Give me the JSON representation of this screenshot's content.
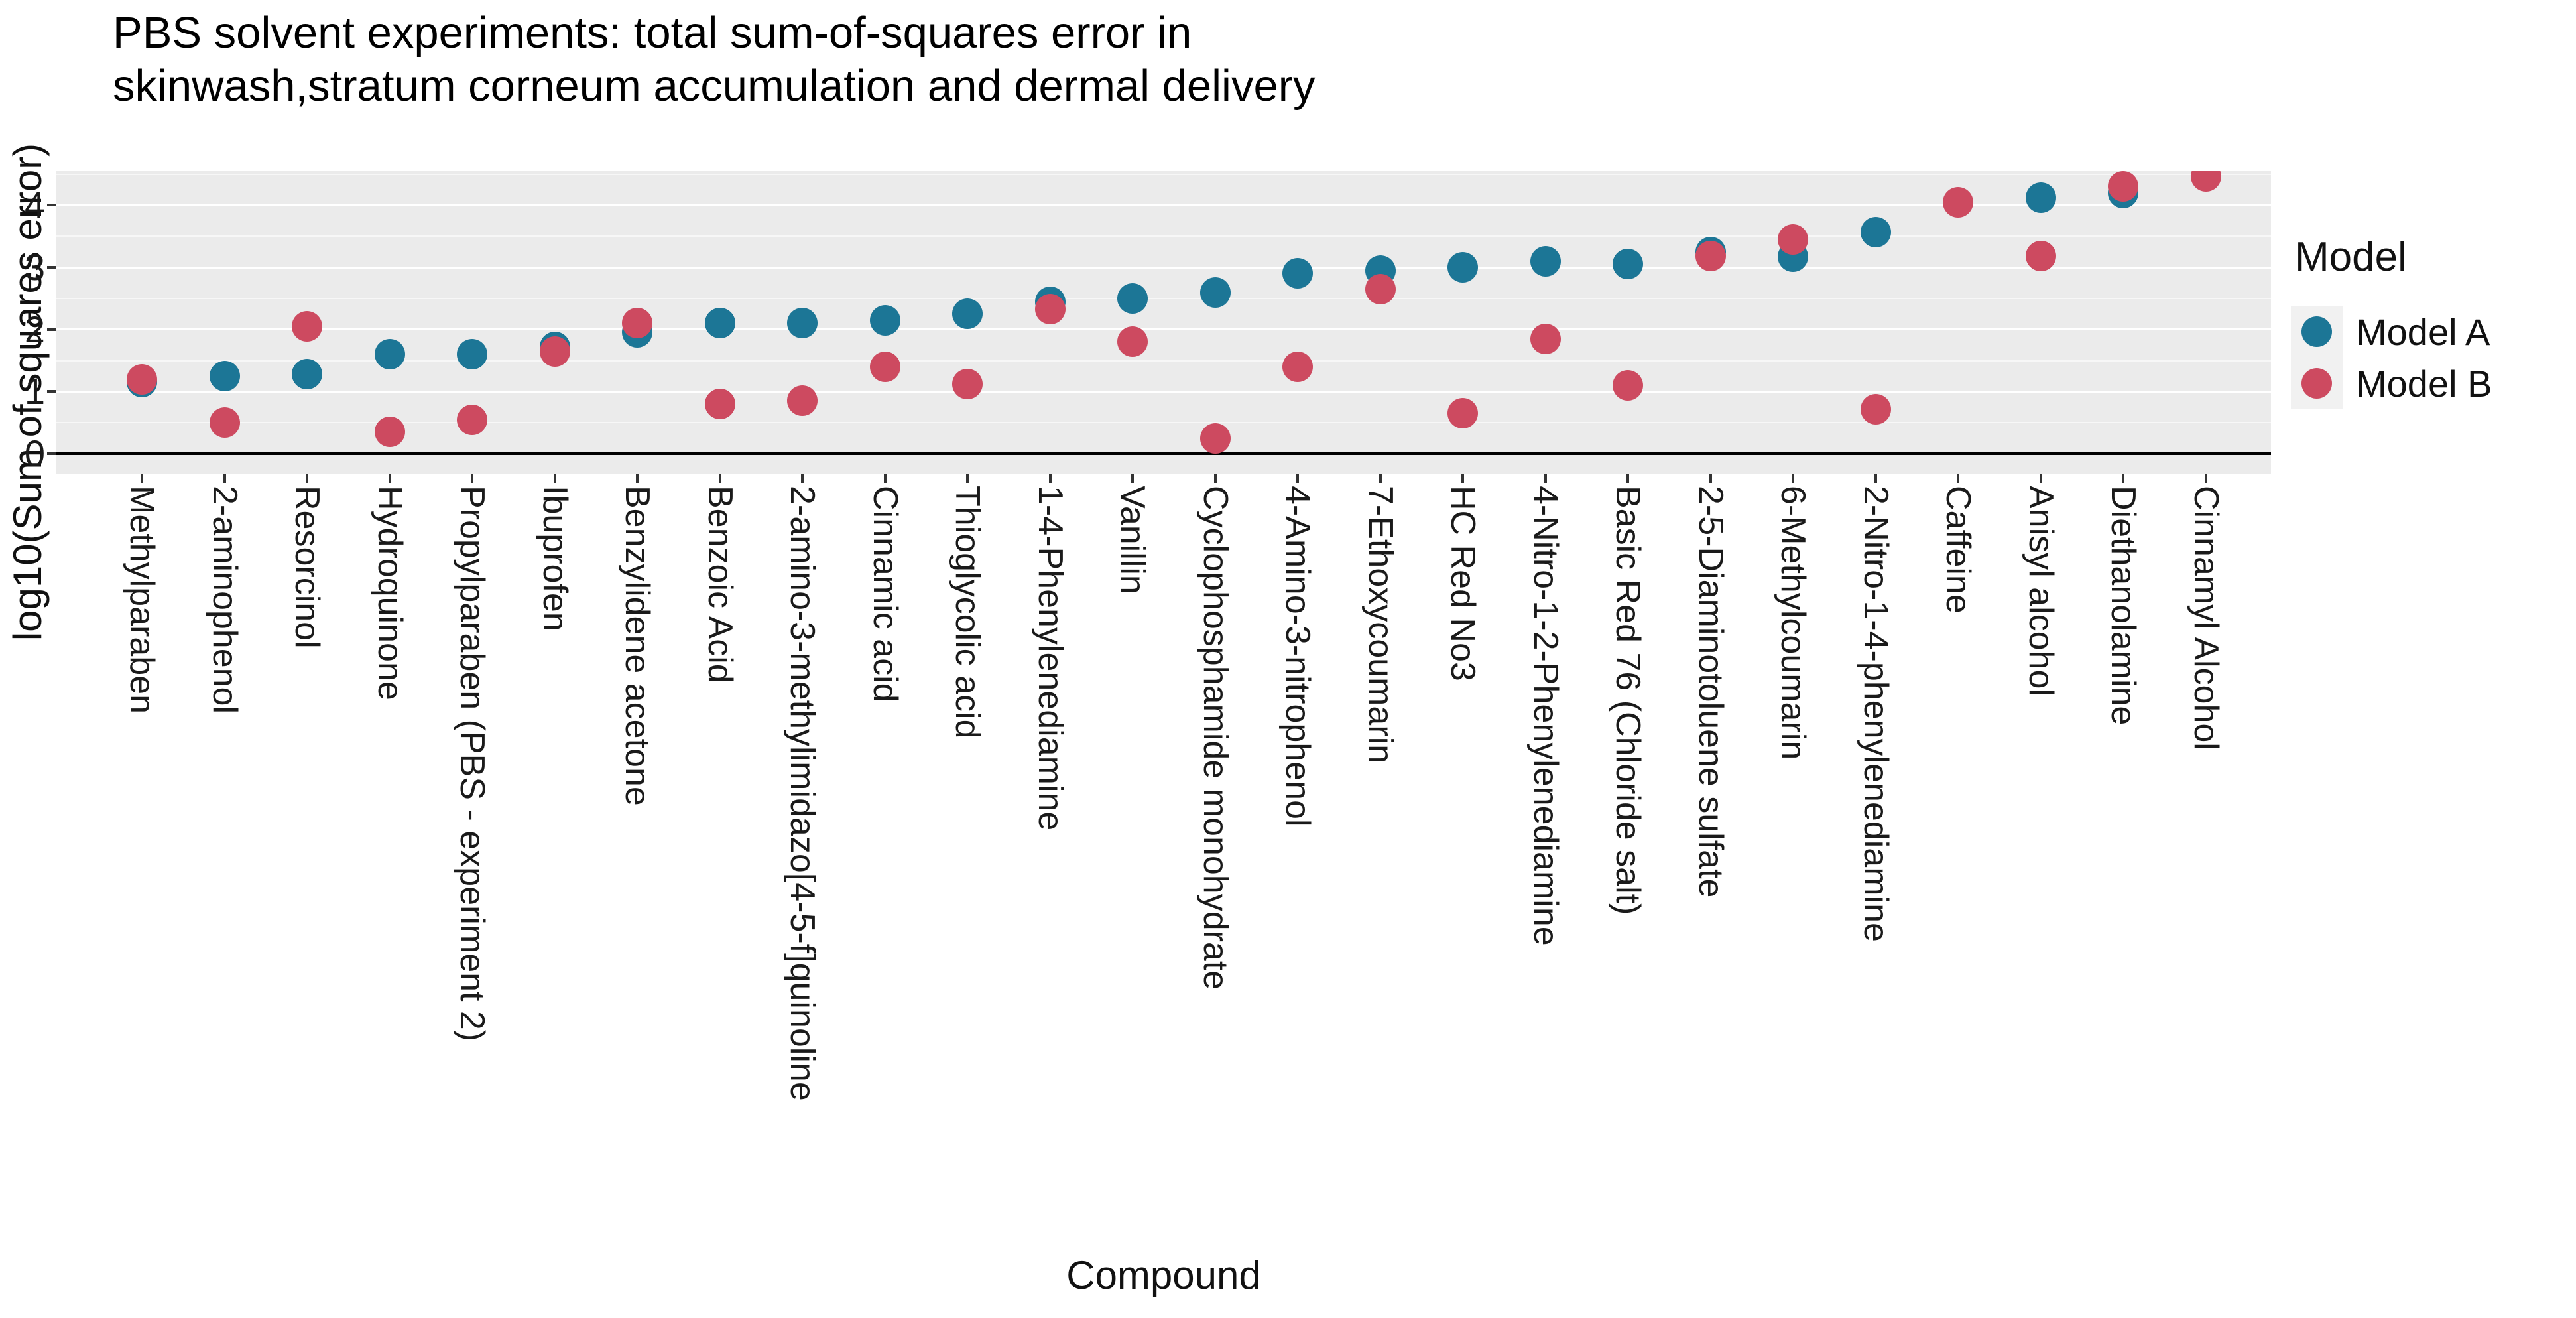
{
  "title": {
    "line1": "PBS solvent experiments: total sum-of-squares error in",
    "line2": "skinwash,stratum corneum accumulation and dermal delivery"
  },
  "axes": {
    "y_label": "log10(Sum of squares error)",
    "x_label": "Compound",
    "y_ticks": [
      0,
      1,
      2,
      3,
      4
    ]
  },
  "legend": {
    "title": "Model",
    "items": [
      {
        "label": "Model A",
        "color": "#1C7696"
      },
      {
        "label": "Model B",
        "color": "#CD4A60"
      }
    ]
  },
  "colors": {
    "panel_background": "#EBEBEB",
    "major_gridline": "#FFFFFF",
    "zero_line": "#000000",
    "model_a": "#1C7696",
    "model_b": "#CD4A60"
  },
  "chart_data": {
    "type": "scatter",
    "title": "PBS solvent experiments: total sum-of-squares error in skinwash,stratum corneum accumulation and dermal delivery",
    "xlabel": "Compound",
    "ylabel": "log10(Sum of squares error)",
    "ylim": [
      -0.32,
      4.55
    ],
    "y_major_ticks": [
      0,
      1,
      2,
      3,
      4
    ],
    "y_minor_ticks": [
      0.5,
      1.5,
      2.5,
      3.5,
      4.5
    ],
    "grid": "major+minor",
    "legend_position": "right",
    "categories": [
      "Methylparaben",
      "2-aminophenol",
      "Resorcinol",
      "Hydroquinone",
      "Propylparaben (PBS - experiment 2)",
      "Ibuprofen",
      "Benzylidene acetone",
      "Benzoic Acid",
      "2-amino-3-methylimidazo[4-5-f]quinoline",
      "Cinnamic acid",
      "Thioglycolic acid",
      "1-4-Phenylenediamine",
      "Vanillin",
      "Cyclophosphamide monohydrate",
      "4-Amino-3-nitrophenol",
      "7-Ethoxycoumarin",
      "HC Red No3",
      "4-Nitro-1-2-Phenylenediamine",
      "Basic Red 76 (Chloride salt)",
      "2-5-Diaminotoluene sulfate",
      "6-Methylcoumarin",
      "2-Nitro-1-4-phenylenediamine",
      "Caffeine",
      "Anisyl alcohol",
      "Diethanolamine",
      "Cinnamyl Alcohol"
    ],
    "series": [
      {
        "name": "Model A",
        "color": "#1C7696",
        "values": [
          1.15,
          1.25,
          1.28,
          1.6,
          1.6,
          1.72,
          1.95,
          2.1,
          2.1,
          2.15,
          2.25,
          2.45,
          2.5,
          2.6,
          2.9,
          2.95,
          3.0,
          3.1,
          3.05,
          3.25,
          3.17,
          3.57,
          null,
          4.12,
          4.2,
          null
        ]
      },
      {
        "name": "Model B",
        "color": "#CD4A60",
        "values": [
          1.2,
          0.5,
          2.05,
          0.35,
          0.55,
          1.65,
          2.1,
          0.8,
          0.85,
          1.4,
          1.12,
          2.33,
          1.8,
          0.25,
          1.4,
          2.65,
          0.65,
          1.85,
          1.1,
          3.18,
          3.45,
          0.72,
          4.05,
          3.18,
          4.3,
          4.47
        ]
      }
    ]
  }
}
